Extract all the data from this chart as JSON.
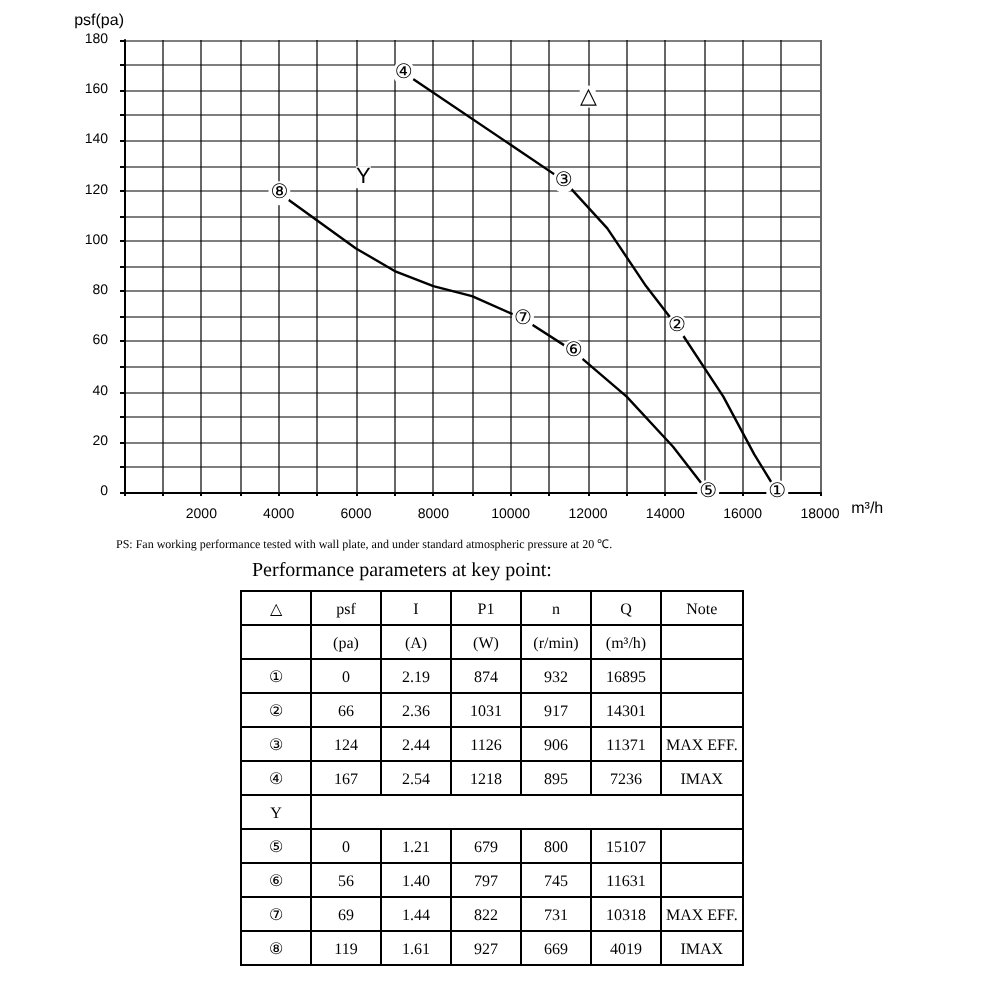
{
  "chart_data": {
    "type": "line",
    "xlabel": "m³/h",
    "ylabel": "psf(pa)",
    "xlim": [
      0,
      18000
    ],
    "xticks": [
      {
        "value": 0,
        "label": null
      },
      {
        "value": 1000,
        "label": null
      },
      2000,
      {
        "value": 3000,
        "label": null
      },
      4000,
      {
        "value": 5000,
        "label": null
      },
      6000,
      {
        "value": 7000,
        "label": null
      },
      8000,
      {
        "value": 9000,
        "label": null
      },
      10000,
      {
        "value": 11000,
        "label": null
      },
      12000,
      {
        "value": 13000,
        "label": null
      },
      14000,
      {
        "value": 15000,
        "label": null
      },
      16000,
      {
        "value": 17000,
        "label": null
      },
      18000
    ],
    "ylim": [
      0,
      180
    ],
    "yticks": [
      0,
      {
        "value": 10,
        "label": null
      },
      20,
      {
        "value": 30,
        "label": null
      },
      40,
      {
        "value": 50,
        "label": null
      },
      60,
      {
        "value": 70,
        "label": null
      },
      80,
      {
        "value": 90,
        "label": null
      },
      100,
      {
        "value": 110,
        "label": null
      },
      120,
      {
        "value": 130,
        "label": null
      },
      140,
      {
        "value": 150,
        "label": null
      },
      160,
      {
        "value": 170,
        "label": null
      },
      180
    ],
    "grid": true,
    "line_style": "solid",
    "series": [
      {
        "color": "#000000",
        "x": [
          7236,
          11371,
          12500,
          13500,
          14301,
          15500,
          16300,
          16895
        ],
        "values": [
          167,
          124,
          105,
          82,
          66,
          38,
          15,
          0
        ],
        "value_labels": [
          "④",
          "③",
          null,
          null,
          "②",
          null,
          null,
          "①"
        ]
      },
      {
        "color": "#000000",
        "x": [
          4019,
          6000,
          7000,
          8000,
          9000,
          10318,
          11631,
          13000,
          14200,
          15107
        ],
        "values": [
          119,
          97,
          88,
          82,
          78,
          69,
          56,
          38,
          18,
          0
        ],
        "value_labels": [
          "⑧",
          null,
          null,
          null,
          null,
          "⑦",
          "⑥",
          null,
          null,
          "⑤"
        ]
      }
    ],
    "annotations": [
      "△",
      "Y",
      "PS: Fan working performance tested with wall plate, and under standard atmospheric pressure at 20 ℃.",
      "Performance parameters at key point:",
      "△\tpsf\tI\tP1\tn\tQ\tNote",
      "\t(pa)\t(A)\t(W)\t(r/min)\t(m³/h)\t",
      "①\t0\t2.19\t874\t932\t16895\t",
      "②\t66\t2.36\t1031\t917\t14301\t",
      "③\t124\t2.44\t1126\t906\t11371\tMAX EFF.",
      "④\t167\t2.54\t1218\t895\t7236\tIMAX",
      "Y",
      "⑤\t0\t1.21\t679\t800\t15107\t",
      "⑥\t56\t1.40\t797\t745\t11631\t",
      "⑦\t69\t1.44\t822\t731\t10318\tMAX EFF.",
      "⑧\t119\t1.61\t927\t669\t4019\tIMAX"
    ]
  }
}
